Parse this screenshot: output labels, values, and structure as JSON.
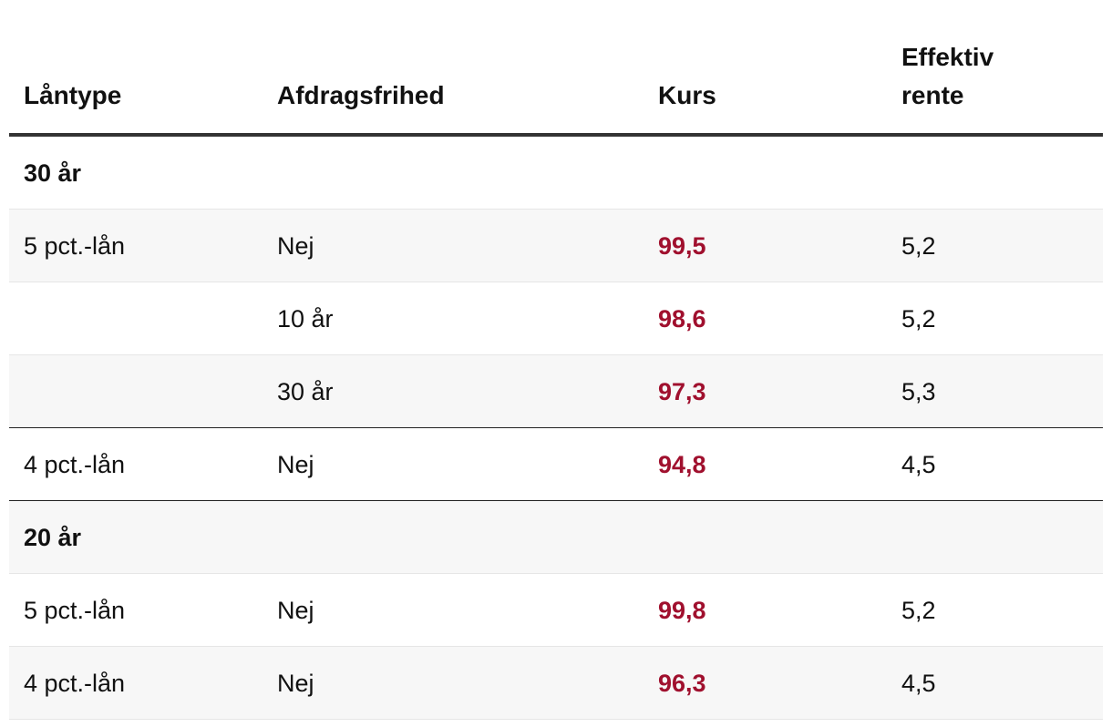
{
  "header": {
    "columns": [
      "Låntype",
      "Afdragsfrihed",
      "Kurs",
      "Effektiv rente"
    ]
  },
  "table": {
    "rows": [
      {
        "group": "30 år"
      },
      {
        "lantype": "5 pct.-lån",
        "afdrag": "Nej",
        "kurs": "99,5",
        "rente": "5,2"
      },
      {
        "afdrag": "10 år",
        "kurs": "98,6",
        "rente": "5,2"
      },
      {
        "afdrag": "30 år",
        "kurs": "97,3",
        "rente": "5,3"
      },
      {
        "lantype": "4 pct.-lån",
        "afdrag": "Nej",
        "kurs": "94,8",
        "rente": "4,5"
      },
      {
        "group": "20 år"
      },
      {
        "lantype": "5 pct.-lån",
        "afdrag": "Nej",
        "kurs": "99,8",
        "rente": "5,2"
      },
      {
        "lantype": "4 pct.-lån",
        "afdrag": "Nej",
        "kurs": "96,3",
        "rente": "4,5"
      }
    ]
  }
}
